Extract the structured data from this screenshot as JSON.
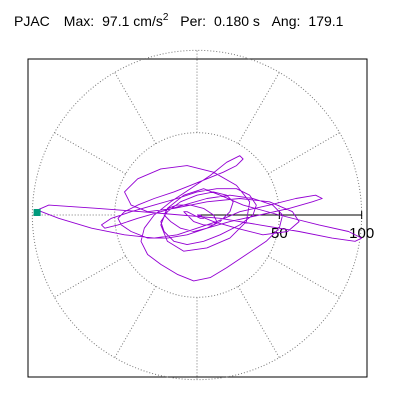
{
  "header": {
    "station": "PJAC",
    "max_label": "Max:",
    "max_value": "97.1",
    "max_unit": "cm/s",
    "max_unit_exp": "2",
    "per_label": "Per:",
    "per_value": "0.180 s",
    "ang_label": "Ang:",
    "ang_value": "179.1"
  },
  "chart_data": {
    "type": "scatter",
    "plot": "polar",
    "grid": true,
    "grid_style": "dotted",
    "rings": [
      50,
      100
    ],
    "spokes_deg": [
      0,
      30,
      60,
      90,
      120,
      150,
      180,
      210,
      240,
      270,
      300,
      330
    ],
    "scale": {
      "ticks": [
        50,
        100
      ],
      "tick_labels": [
        "50",
        "100"
      ],
      "axis_direction": "east"
    },
    "max_amplitude": 97.1,
    "max_angle_deg": 179.1,
    "max_marker_color": "#009a7c",
    "trace_color": "#9400d3",
    "trace_x": [
      0,
      10,
      24,
      40,
      55,
      62,
      58,
      44,
      26,
      6,
      -14,
      -30,
      -40,
      -44,
      -36,
      -22,
      -6,
      10,
      24,
      32,
      30,
      20,
      6,
      -8,
      -18,
      -22,
      -18,
      -8,
      4,
      14,
      28,
      50,
      74,
      92,
      100,
      96,
      82,
      62,
      38,
      14,
      -10,
      -34,
      -60,
      -90,
      -97,
      -84,
      -64,
      -44,
      -26,
      -12,
      0,
      12,
      26,
      44,
      60,
      72,
      76,
      70,
      56,
      38,
      20,
      6,
      -6,
      -18,
      -30,
      -40,
      -46,
      -48,
      -44,
      -36,
      -26,
      -14,
      -4,
      6,
      16,
      24,
      28,
      26,
      18,
      8,
      -4,
      -16,
      -26,
      -32,
      -34,
      -30,
      -22,
      -12,
      -2,
      8,
      18,
      30,
      42,
      50,
      52,
      46,
      34,
      20,
      6,
      -8,
      -22,
      -36,
      -48,
      -56,
      -58,
      -52,
      -40,
      -26,
      -12,
      0,
      12,
      24,
      32,
      36,
      34,
      26,
      14,
      4,
      -6,
      -14,
      -20,
      -22,
      -18,
      -10,
      0,
      10,
      18,
      22,
      20,
      14,
      6,
      -2,
      -10,
      -16,
      -20,
      -18,
      -12,
      -4,
      4,
      10,
      12,
      10,
      4,
      -2,
      -6,
      -8,
      -6,
      -2,
      2,
      4,
      2,
      0
    ],
    "trace_y": [
      0,
      -4,
      -8,
      -12,
      -10,
      -4,
      2,
      8,
      10,
      8,
      4,
      2,
      6,
      14,
      22,
      28,
      30,
      26,
      18,
      8,
      -4,
      -14,
      -20,
      -22,
      -16,
      -6,
      4,
      12,
      16,
      12,
      6,
      0,
      -6,
      -10,
      -14,
      -16,
      -14,
      -10,
      -6,
      -2,
      0,
      2,
      4,
      6,
      3,
      -2,
      -8,
      -12,
      -14,
      -12,
      -8,
      -4,
      2,
      6,
      10,
      12,
      10,
      8,
      4,
      0,
      -4,
      -8,
      -12,
      -14,
      -14,
      -10,
      -6,
      -2,
      2,
      6,
      10,
      14,
      18,
      22,
      26,
      30,
      34,
      36,
      32,
      24,
      16,
      8,
      0,
      -8,
      -16,
      -24,
      -30,
      -36,
      -40,
      -38,
      -32,
      -24,
      -16,
      -8,
      0,
      6,
      10,
      12,
      10,
      6,
      2,
      -2,
      -6,
      -8,
      -6,
      -2,
      2,
      6,
      10,
      14,
      16,
      16,
      12,
      6,
      0,
      -6,
      -12,
      -16,
      -18,
      -16,
      -10,
      -4,
      2,
      8,
      12,
      14,
      12,
      8,
      2,
      -4,
      -8,
      -10,
      -8,
      -4,
      0,
      4,
      6,
      6,
      4,
      0,
      -4,
      -6,
      -6,
      -4,
      0,
      2,
      2,
      0,
      -2,
      -2,
      0,
      0
    ]
  }
}
